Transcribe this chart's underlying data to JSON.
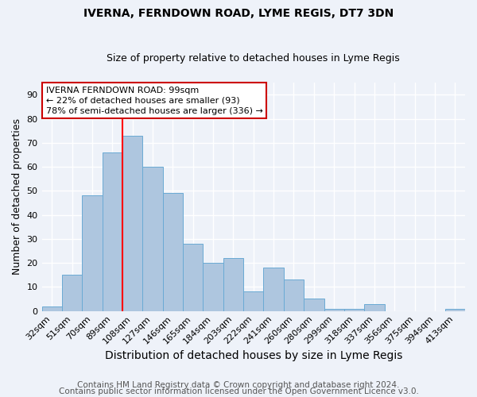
{
  "title1": "IVERNA, FERNDOWN ROAD, LYME REGIS, DT7 3DN",
  "title2": "Size of property relative to detached houses in Lyme Regis",
  "xlabel": "Distribution of detached houses by size in Lyme Regis",
  "ylabel": "Number of detached properties",
  "categories": [
    "32sqm",
    "51sqm",
    "70sqm",
    "89sqm",
    "108sqm",
    "127sqm",
    "146sqm",
    "165sqm",
    "184sqm",
    "203sqm",
    "222sqm",
    "241sqm",
    "260sqm",
    "280sqm",
    "299sqm",
    "318sqm",
    "337sqm",
    "356sqm",
    "375sqm",
    "394sqm",
    "413sqm"
  ],
  "values": [
    2,
    15,
    48,
    66,
    73,
    60,
    49,
    28,
    20,
    22,
    8,
    18,
    13,
    5,
    1,
    1,
    3,
    0,
    0,
    0,
    1
  ],
  "bar_color": "#aec6df",
  "bar_edge_color": "#6aaad4",
  "red_line_index": 3.5,
  "annotation_text": "IVERNA FERNDOWN ROAD: 99sqm\n← 22% of detached houses are smaller (93)\n78% of semi-detached houses are larger (336) →",
  "annotation_box_color": "#ffffff",
  "annotation_box_edge_color": "#cc0000",
  "ylim": [
    0,
    95
  ],
  "yticks": [
    0,
    10,
    20,
    30,
    40,
    50,
    60,
    70,
    80,
    90
  ],
  "footer1": "Contains HM Land Registry data © Crown copyright and database right 2024.",
  "footer2": "Contains public sector information licensed under the Open Government Licence v3.0.",
  "background_color": "#eef2f9",
  "grid_color": "#ffffff",
  "title1_fontsize": 10,
  "title2_fontsize": 9,
  "xlabel_fontsize": 10,
  "ylabel_fontsize": 9,
  "tick_fontsize": 8,
  "annotation_fontsize": 8,
  "footer_fontsize": 7.5
}
